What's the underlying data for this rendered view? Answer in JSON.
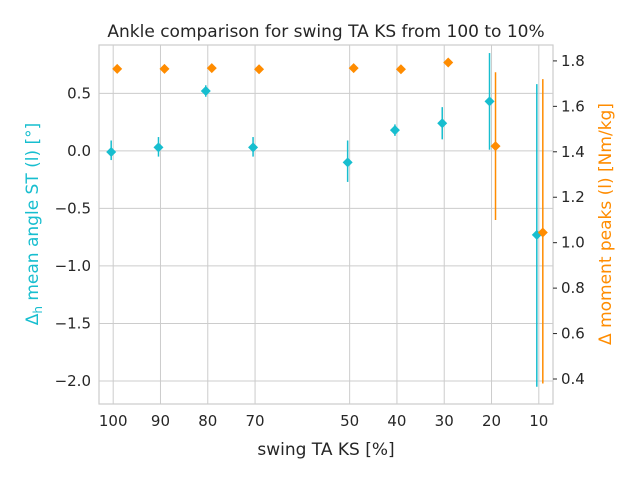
{
  "chart_data": {
    "type": "scatter",
    "title": "Ankle comparison for swing TA KS from 100 to 10%",
    "xlabel": "swing TA KS [%]",
    "ylabel_left_prefix": "Δ",
    "ylabel_left_sub": "h",
    "ylabel_left_rest": " mean angle ST (l) [°]",
    "ylabel_right": "Δ moment peaks (l) [Nm/kg]",
    "x_ticks": [
      100,
      90,
      80,
      70,
      50,
      40,
      30,
      20,
      10
    ],
    "xlim": [
      103,
      7
    ],
    "ylim_left": [
      -2.2,
      0.92
    ],
    "yticks_left": [
      0.5,
      0.0,
      -0.5,
      -1.0,
      -1.5,
      -2.0
    ],
    "yticks_left_labels": [
      "0.5",
      "0.0",
      "−0.5",
      "−1.0",
      "−1.5",
      "−2.0"
    ],
    "ylim_right": [
      0.29,
      1.87
    ],
    "yticks_right": [
      0.4,
      0.6,
      0.8,
      1.0,
      1.2,
      1.4,
      1.6,
      1.8
    ],
    "yticks_right_labels": [
      "0.4",
      "0.6",
      "0.8",
      "1.0",
      "1.2",
      "1.4",
      "1.6",
      "1.8"
    ],
    "grid": true,
    "colors": {
      "left": "#17becf",
      "right": "#ff8c00",
      "text": "#262626",
      "grid": "#cccccc"
    },
    "series": [
      {
        "axis": "left",
        "marker": "diamond",
        "points": [
          {
            "x": 100,
            "y": -0.01,
            "err_lo": -0.08,
            "err_hi": 0.09
          },
          {
            "x": 90,
            "y": 0.03,
            "err_lo": -0.05,
            "err_hi": 0.12
          },
          {
            "x": 80,
            "y": 0.52,
            "err_lo": 0.47,
            "err_hi": 0.57
          },
          {
            "x": 70,
            "y": 0.03,
            "err_lo": -0.05,
            "err_hi": 0.12
          },
          {
            "x": 50,
            "y": -0.1,
            "err_lo": -0.27,
            "err_hi": 0.09
          },
          {
            "x": 40,
            "y": 0.18,
            "err_lo": 0.13,
            "err_hi": 0.23
          },
          {
            "x": 30,
            "y": 0.24,
            "err_lo": 0.1,
            "err_hi": 0.38
          },
          {
            "x": 20,
            "y": 0.43,
            "err_lo": 0.01,
            "err_hi": 0.85
          },
          {
            "x": 10,
            "y": -0.73,
            "err_lo": -2.05,
            "err_hi": 0.58
          }
        ]
      },
      {
        "axis": "right",
        "marker": "diamond",
        "points": [
          {
            "x": 100,
            "y": 1.765
          },
          {
            "x": 90,
            "y": 1.765
          },
          {
            "x": 80,
            "y": 1.768
          },
          {
            "x": 70,
            "y": 1.763
          },
          {
            "x": 50,
            "y": 1.768
          },
          {
            "x": 40,
            "y": 1.763
          },
          {
            "x": 30,
            "y": 1.793
          },
          {
            "x": 20,
            "y": 1.425,
            "err_lo": 1.1,
            "err_hi": 1.75
          },
          {
            "x": 10,
            "y": 1.045,
            "err_lo": 0.38,
            "err_hi": 1.72
          }
        ]
      }
    ]
  }
}
